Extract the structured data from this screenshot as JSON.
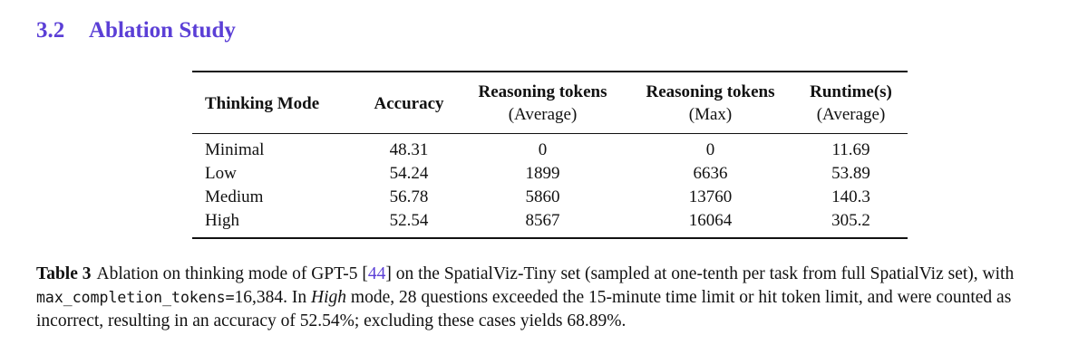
{
  "section": {
    "number": "3.2",
    "title": "Ablation Study"
  },
  "table": {
    "headers": [
      {
        "main": "Thinking Mode",
        "sub": ""
      },
      {
        "main": "Accuracy",
        "sub": ""
      },
      {
        "main": "Reasoning tokens",
        "sub": "(Average)"
      },
      {
        "main": "Reasoning tokens",
        "sub": "(Max)"
      },
      {
        "main": "Runtime(s)",
        "sub": "(Average)"
      }
    ],
    "rows": [
      {
        "mode": "Minimal",
        "accuracy": "48.31",
        "tokens_avg": "0",
        "tokens_max": "0",
        "runtime_avg": "11.69"
      },
      {
        "mode": "Low",
        "accuracy": "54.24",
        "tokens_avg": "1899",
        "tokens_max": "6636",
        "runtime_avg": "53.89"
      },
      {
        "mode": "Medium",
        "accuracy": "56.78",
        "tokens_avg": "5860",
        "tokens_max": "13760",
        "runtime_avg": "140.3"
      },
      {
        "mode": "High",
        "accuracy": "52.54",
        "tokens_avg": "8567",
        "tokens_max": "16064",
        "runtime_avg": "305.2"
      }
    ]
  },
  "caption": {
    "label": "Table 3",
    "text_1": "Ablation on thinking mode of GPT-5 [",
    "citation": "44",
    "text_2": "] on the SpatialViz-Tiny set (sampled at one-tenth per task from full SpatialViz set), with ",
    "code": "max_completion_tokens=",
    "text_3": "16,384. In ",
    "emph": "High",
    "text_4": " mode, 28 questions exceeded the 15-minute time limit or hit token limit, and were counted as incorrect, resulting in an accuracy of 52.54%; excluding these cases yields 68.89%."
  }
}
